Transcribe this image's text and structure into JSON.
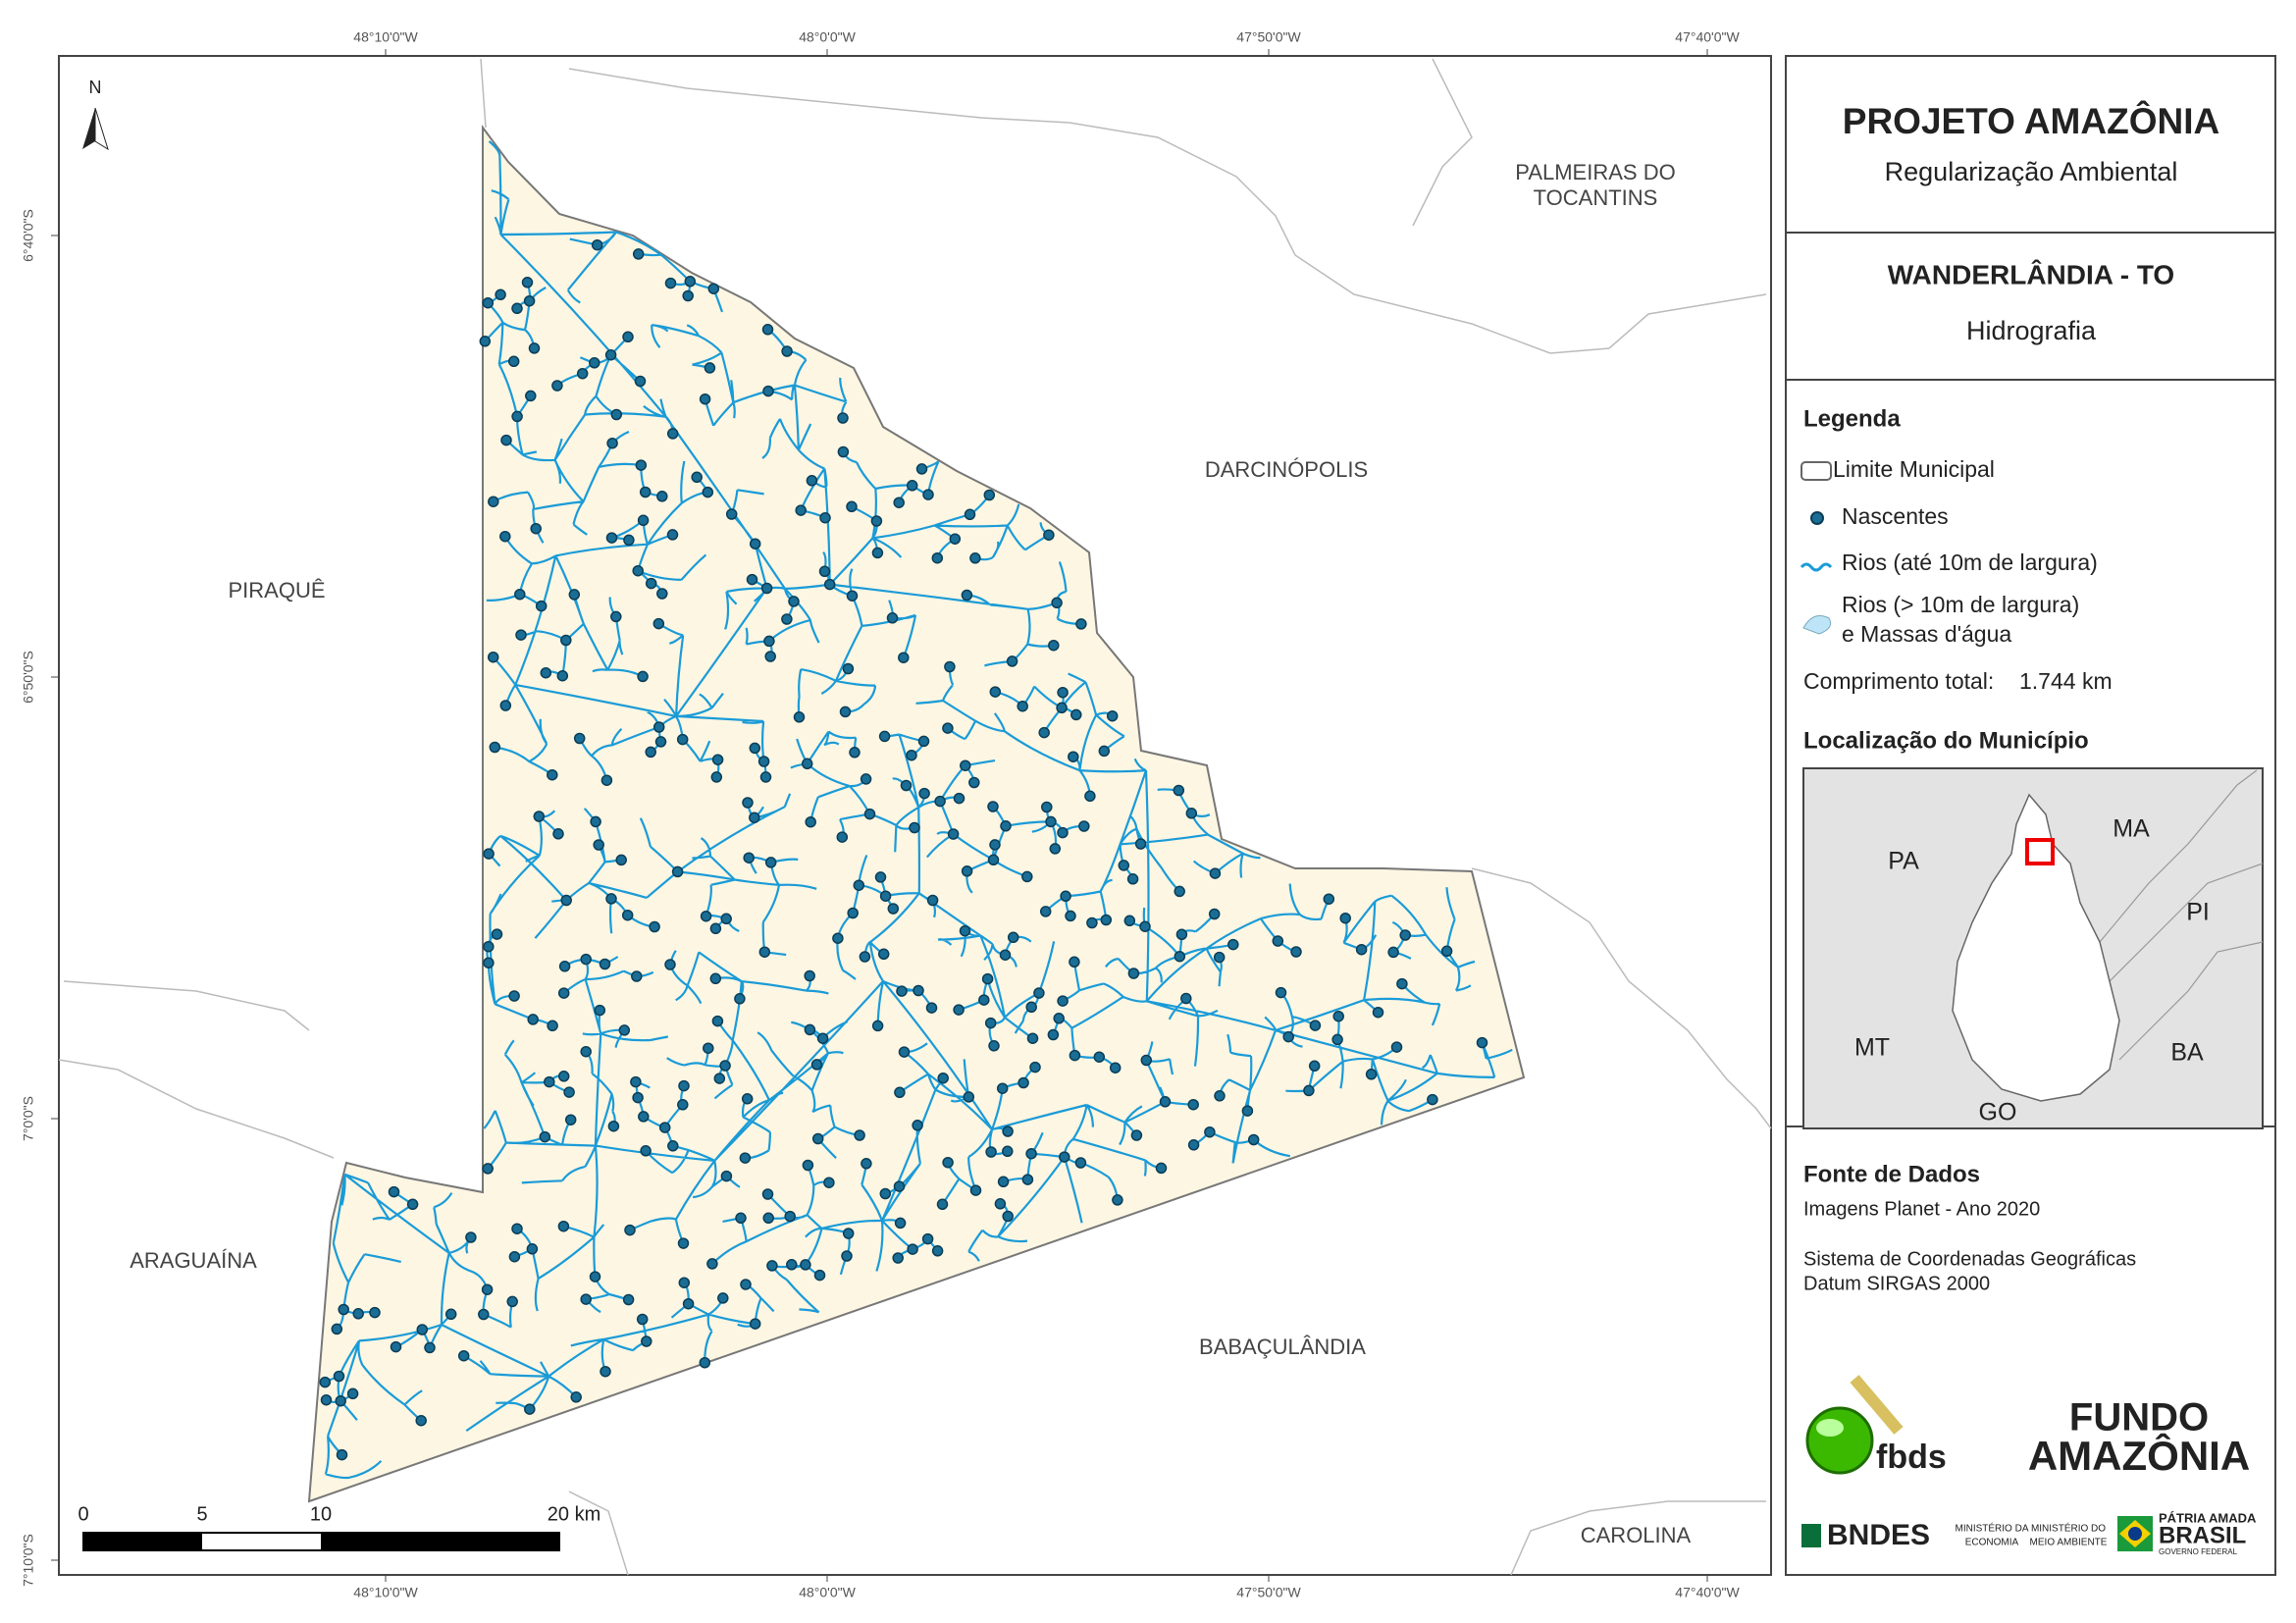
{
  "map": {
    "lon_labels": [
      "48°10'0\"W",
      "48°0'0\"W",
      "47°50'0\"W",
      "47°40'0\"W"
    ],
    "lat_labels": [
      "6°40'0\"S",
      "6°50'0\"S",
      "7°0'0\"S",
      "7°10'0\"S"
    ],
    "north": "N",
    "places": {
      "palmeiras": [
        "PALMEIRAS DO",
        "TOCANTINS"
      ],
      "darcinopolis": "DARCINÓPOLIS",
      "piraque": "PIRAQUÊ",
      "araguaina": "ARAGUAÍNA",
      "babaculandia": "BABAÇULÂNDIA",
      "carolina": "CAROLINA"
    },
    "scale": [
      "0",
      "5",
      "10",
      "20 km"
    ]
  },
  "panel": {
    "title": "PROJETO AMAZÔNIA",
    "subtitle": "Regularização Ambiental",
    "municipality": "WANDERLÂNDIA - TO",
    "theme": "Hidrografia",
    "legend_title": "Legenda",
    "legend_items": [
      "Limite Municipal",
      "Nascentes",
      "Rios (até 10m de largura)",
      [
        "Rios (> 10m de largura)",
        "e Massas d'água"
      ]
    ],
    "total_label": "Comprimento total:",
    "total_value": "1.744 km",
    "location_title": "Localização do Município",
    "inset_labels": [
      "PA",
      "MA",
      "PI",
      "MT",
      "BA",
      "GO"
    ],
    "source_title": "Fonte de Dados",
    "source_lines": [
      "Imagens Planet - Ano 2020",
      "Sistema de Coordenadas Geográficas",
      "Datum SIRGAS 2000"
    ],
    "logos": {
      "fbds": "fbds",
      "fundo": "FUNDO",
      "amazonia": "AMAZÔNIA",
      "bndes": "BNDES",
      "economia": [
        "MINISTÉRIO DA",
        "ECONOMIA"
      ],
      "meio": [
        "MINISTÉRIO DO",
        "MEIO AMBIENTE"
      ],
      "patria": "PÁTRIA AMADA",
      "brasil": "BRASIL",
      "governo": "GOVERNO FEDERAL"
    }
  }
}
